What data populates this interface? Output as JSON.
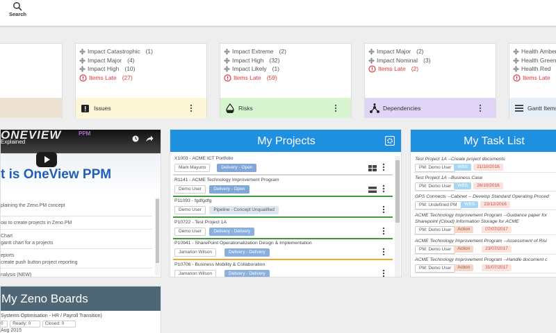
{
  "toolbar": {
    "search": "Search"
  },
  "cards": [
    {
      "rows": [
        {
          "label": "Impact Catastrophic",
          "count": "(1)"
        },
        {
          "label": "Impact Major",
          "count": "(4)"
        },
        {
          "label": "Impact High",
          "count": "(10)"
        }
      ],
      "late": {
        "label": "Items Late",
        "count": "(27)"
      },
      "footer": {
        "label": "Issues",
        "color": "#fdf7d8"
      }
    },
    {
      "rows": [
        {
          "label": "Impact Extreme",
          "count": "(2)"
        },
        {
          "label": "Impact High",
          "count": "(32)"
        },
        {
          "label": "Impact Likely",
          "count": "(1)"
        }
      ],
      "late": {
        "label": "Items Late",
        "count": "(59)"
      },
      "footer": {
        "label": "Risks",
        "color": "#d6f5d0"
      }
    },
    {
      "rows": [
        {
          "label": "Impact Major",
          "count": "(2)"
        },
        {
          "label": "Impact Nominal",
          "count": "(3)"
        }
      ],
      "late": {
        "label": "Items Late",
        "count": "(2)"
      },
      "footer": {
        "label": "Dependencies",
        "color": "#e0d5f6"
      }
    },
    {
      "rows": [
        {
          "label": "Health Amber"
        },
        {
          "label": "Health Green"
        },
        {
          "label": "Health Red"
        }
      ],
      "late": {
        "label": "Items Late"
      },
      "footer": {
        "label": "Gantt Items",
        "color": "#e6eef8"
      }
    }
  ],
  "video": {
    "logo": "ONEVIEW",
    "logo_sub": "PPM",
    "caption": "Explained",
    "headline": "t is OneView PPM",
    "lines": [
      "plaining the Zeno.PM concept",
      "ow to create projects in Zeno.PM",
      "Chart",
      "gantt chart for a projects",
      "eports",
      "create push button project reporting",
      "nalysis (NEW)"
    ]
  },
  "boards": {
    "title": "My Zeno Boards",
    "board": "Systems Optimisation - HR / Payroll Transition)",
    "stats": [
      "0",
      "Ready: 0",
      "Closed: 0"
    ],
    "date": "Aug 2015"
  },
  "projects": {
    "title": "My Projects",
    "items": [
      {
        "title": "X1003 - ACME ICT Portfolio",
        "owner": "Mark Mayurio",
        "status": "Delivery - Open",
        "status_color": "#7fa7d9",
        "line": "#d4d4d4"
      },
      {
        "title": "R1141 - ACME Technology Improvement Program",
        "owner": "Demo User",
        "status": "Delivery - Open",
        "status_color": "#7fa7d9",
        "line": "#3d9b3d"
      },
      {
        "title": "P11093 - fgdfgdfg",
        "owner": "Demo User",
        "status": "Pipeline - Concept Unqualified",
        "status_color": "#dfe7f1",
        "line": "#3d9b3d"
      },
      {
        "title": "P10722 - Test Project 1A",
        "owner": "Demo User",
        "status": "Delivery - Delivery",
        "status_color": "#8bb0de",
        "line": "#3d9b3d"
      },
      {
        "title": "P10941 - SharePoint Operationalization Design & Implementation",
        "owner": "Jamarion Wilson",
        "status": "Delivery - Delivery",
        "status_color": "#8bb0de",
        "line": "#f0a830"
      },
      {
        "title": "P10706 - Business Mobility & Collaboration",
        "owner": "Jamarion Wilson",
        "status": "Delivery - Delivery",
        "status_color": "#8bb0de",
        "line": "#d4d4d4"
      }
    ]
  },
  "tasks": {
    "title": "My Task List",
    "items": [
      {
        "title": "Test Project 1A --Create project documents",
        "pm": "PM: Demo User",
        "kind": "WBS",
        "kind_color": "#a6d6f4",
        "date": "21/10/2016"
      },
      {
        "title": "Test Project 1A --Business Case",
        "pm": "PM: Demo User",
        "kind": "WBS",
        "kind_color": "#a6d6f4",
        "date": "26/10/2016"
      },
      {
        "title": "GPS Connects --Cabinet -- Develop Standard Operating Proced",
        "pm": "PM: Undefined PM",
        "kind": "WBS",
        "kind_color": "#a6d6f4",
        "date": "23/12/2016"
      },
      {
        "title": "ACME Technology Improvement Program --Guidance paper for Sharepoint (Cloud) Information Storage for ACME",
        "pm": "PM: Demo User",
        "kind": "Action",
        "kind_color": "#f6d6c8",
        "date": "07/07/2017"
      },
      {
        "title": "ACME Technology Improvement Program --Assessment of Risi",
        "pm": "PM: Demo User",
        "kind": "Action",
        "kind_color": "#f6d6c8",
        "date": "23/07/2017"
      },
      {
        "title": "ACME Technology Improvement Program --Handle document c",
        "pm": "PM: Demo User",
        "kind": "Action",
        "kind_color": "#f6d6c8",
        "date": "31/07/2017"
      }
    ]
  }
}
